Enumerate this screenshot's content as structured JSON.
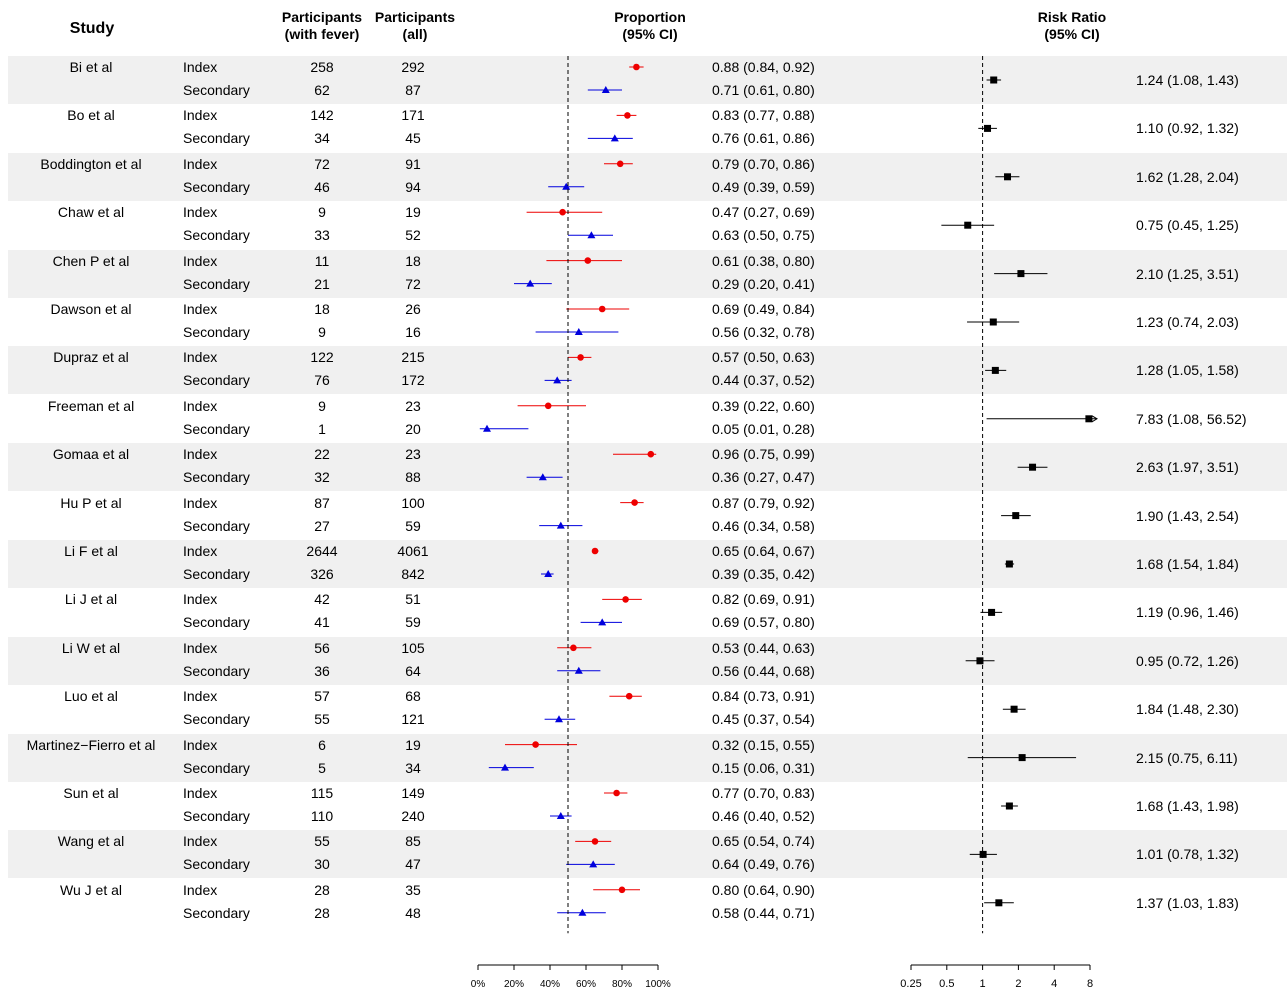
{
  "headers": {
    "study": "Study",
    "participants_fever": [
      "Participants",
      "(with fever)"
    ],
    "participants_all": [
      "Participants",
      "(all)"
    ],
    "proportion": [
      "Proportion",
      "(95% CI)"
    ],
    "risk_ratio": [
      "Risk Ratio",
      "(95% CI)"
    ]
  },
  "colors": {
    "index": "#ee0000",
    "secondary": "#0000dd",
    "rr": "#000000",
    "band": "#f0f0f0"
  },
  "chart_data": [
    {
      "type": "scatter",
      "subtype": "forest-plot",
      "title": "Proportion",
      "subtitle": "(95% CI)",
      "xlim": [
        0,
        1
      ],
      "xticks": [
        0,
        0.2,
        0.4,
        0.6,
        0.8,
        1.0
      ],
      "xtick_labels": [
        "0%",
        "20%",
        "40%",
        "60%",
        "80%",
        "100%"
      ],
      "reference_line": 0.5,
      "series": [
        {
          "name": "Index",
          "marker": "circle",
          "color": "#ee0000"
        },
        {
          "name": "Secondary",
          "marker": "triangle",
          "color": "#0000dd"
        }
      ]
    },
    {
      "type": "scatter",
      "subtype": "forest-plot",
      "title": "Risk Ratio",
      "subtitle": "(95% CI)",
      "scale": "log2",
      "xlim": [
        0.25,
        8
      ],
      "xticks": [
        0.25,
        0.5,
        1,
        2,
        4,
        8
      ],
      "xtick_labels": [
        "0.25",
        "0.5",
        "1",
        "2",
        "4",
        "8"
      ],
      "reference_line": 1
    }
  ],
  "studies": [
    {
      "name": "Bi et al",
      "index": {
        "label": "Index",
        "fever": "258",
        "all": "292",
        "ci": "0.88 (0.84, 0.92)",
        "p": 0.88,
        "lo": 0.84,
        "hi": 0.92
      },
      "secondary": {
        "label": "Secondary",
        "fever": "62",
        "all": "87",
        "ci": "0.71 (0.61, 0.80)",
        "p": 0.71,
        "lo": 0.61,
        "hi": 0.8
      },
      "rr": {
        "text": "1.24 (1.08,  1.43)",
        "est": 1.24,
        "lo": 1.08,
        "hi": 1.43
      }
    },
    {
      "name": "Bo et al",
      "index": {
        "label": "Index",
        "fever": "142",
        "all": "171",
        "ci": "0.83 (0.77, 0.88)",
        "p": 0.83,
        "lo": 0.77,
        "hi": 0.88
      },
      "secondary": {
        "label": "Secondary",
        "fever": "34",
        "all": "45",
        "ci": "0.76 (0.61, 0.86)",
        "p": 0.76,
        "lo": 0.61,
        "hi": 0.86
      },
      "rr": {
        "text": "1.10 (0.92,  1.32)",
        "est": 1.1,
        "lo": 0.92,
        "hi": 1.32
      }
    },
    {
      "name": "Boddington et al",
      "index": {
        "label": "Index",
        "fever": "72",
        "all": "91",
        "ci": "0.79 (0.70, 0.86)",
        "p": 0.79,
        "lo": 0.7,
        "hi": 0.86
      },
      "secondary": {
        "label": "Secondary",
        "fever": "46",
        "all": "94",
        "ci": "0.49 (0.39, 0.59)",
        "p": 0.49,
        "lo": 0.39,
        "hi": 0.59
      },
      "rr": {
        "text": "1.62 (1.28,  2.04)",
        "est": 1.62,
        "lo": 1.28,
        "hi": 2.04
      }
    },
    {
      "name": "Chaw et al",
      "index": {
        "label": "Index",
        "fever": "9",
        "all": "19",
        "ci": "0.47 (0.27, 0.69)",
        "p": 0.47,
        "lo": 0.27,
        "hi": 0.69
      },
      "secondary": {
        "label": "Secondary",
        "fever": "33",
        "all": "52",
        "ci": "0.63 (0.50, 0.75)",
        "p": 0.63,
        "lo": 0.5,
        "hi": 0.75
      },
      "rr": {
        "text": "0.75 (0.45,  1.25)",
        "est": 0.75,
        "lo": 0.45,
        "hi": 1.25
      }
    },
    {
      "name": "Chen P et al",
      "index": {
        "label": "Index",
        "fever": "11",
        "all": "18",
        "ci": "0.61 (0.38, 0.80)",
        "p": 0.61,
        "lo": 0.38,
        "hi": 0.8
      },
      "secondary": {
        "label": "Secondary",
        "fever": "21",
        "all": "72",
        "ci": "0.29 (0.20, 0.41)",
        "p": 0.29,
        "lo": 0.2,
        "hi": 0.41
      },
      "rr": {
        "text": "2.10 (1.25,  3.51)",
        "est": 2.1,
        "lo": 1.25,
        "hi": 3.51
      }
    },
    {
      "name": "Dawson et al",
      "index": {
        "label": "Index",
        "fever": "18",
        "all": "26",
        "ci": "0.69 (0.49, 0.84)",
        "p": 0.69,
        "lo": 0.49,
        "hi": 0.84
      },
      "secondary": {
        "label": "Secondary",
        "fever": "9",
        "all": "16",
        "ci": "0.56 (0.32, 0.78)",
        "p": 0.56,
        "lo": 0.32,
        "hi": 0.78
      },
      "rr": {
        "text": "1.23 (0.74,  2.03)",
        "est": 1.23,
        "lo": 0.74,
        "hi": 2.03
      }
    },
    {
      "name": "Dupraz et al",
      "index": {
        "label": "Index",
        "fever": "122",
        "all": "215",
        "ci": "0.57 (0.50, 0.63)",
        "p": 0.57,
        "lo": 0.5,
        "hi": 0.63
      },
      "secondary": {
        "label": "Secondary",
        "fever": "76",
        "all": "172",
        "ci": "0.44 (0.37, 0.52)",
        "p": 0.44,
        "lo": 0.37,
        "hi": 0.52
      },
      "rr": {
        "text": "1.28 (1.05,  1.58)",
        "est": 1.28,
        "lo": 1.05,
        "hi": 1.58
      }
    },
    {
      "name": "Freeman et al",
      "index": {
        "label": "Index",
        "fever": "9",
        "all": "23",
        "ci": "0.39 (0.22, 0.60)",
        "p": 0.39,
        "lo": 0.22,
        "hi": 0.6
      },
      "secondary": {
        "label": "Secondary",
        "fever": "1",
        "all": "20",
        "ci": "0.05 (0.01, 0.28)",
        "p": 0.05,
        "lo": 0.01,
        "hi": 0.28
      },
      "rr": {
        "text": "7.83 (1.08, 56.52)",
        "est": 7.83,
        "lo": 1.08,
        "hi": 56.52
      }
    },
    {
      "name": "Gomaa et al",
      "index": {
        "label": "Index",
        "fever": "22",
        "all": "23",
        "ci": "0.96 (0.75, 0.99)",
        "p": 0.96,
        "lo": 0.75,
        "hi": 0.99
      },
      "secondary": {
        "label": "Secondary",
        "fever": "32",
        "all": "88",
        "ci": "0.36 (0.27, 0.47)",
        "p": 0.36,
        "lo": 0.27,
        "hi": 0.47
      },
      "rr": {
        "text": "2.63 (1.97,  3.51)",
        "est": 2.63,
        "lo": 1.97,
        "hi": 3.51
      }
    },
    {
      "name": "Hu P et al",
      "index": {
        "label": "Index",
        "fever": "87",
        "all": "100",
        "ci": "0.87 (0.79, 0.92)",
        "p": 0.87,
        "lo": 0.79,
        "hi": 0.92
      },
      "secondary": {
        "label": "Secondary",
        "fever": "27",
        "all": "59",
        "ci": "0.46 (0.34, 0.58)",
        "p": 0.46,
        "lo": 0.34,
        "hi": 0.58
      },
      "rr": {
        "text": "1.90 (1.43,  2.54)",
        "est": 1.9,
        "lo": 1.43,
        "hi": 2.54
      }
    },
    {
      "name": "Li F et al",
      "index": {
        "label": "Index",
        "fever": "2644",
        "all": "4061",
        "ci": "0.65 (0.64, 0.67)",
        "p": 0.65,
        "lo": 0.64,
        "hi": 0.67
      },
      "secondary": {
        "label": "Secondary",
        "fever": "326",
        "all": "842",
        "ci": "0.39 (0.35, 0.42)",
        "p": 0.39,
        "lo": 0.35,
        "hi": 0.42
      },
      "rr": {
        "text": "1.68 (1.54,  1.84)",
        "est": 1.68,
        "lo": 1.54,
        "hi": 1.84
      }
    },
    {
      "name": "Li J et al",
      "index": {
        "label": "Index",
        "fever": "42",
        "all": "51",
        "ci": "0.82 (0.69, 0.91)",
        "p": 0.82,
        "lo": 0.69,
        "hi": 0.91
      },
      "secondary": {
        "label": "Secondary",
        "fever": "41",
        "all": "59",
        "ci": "0.69 (0.57, 0.80)",
        "p": 0.69,
        "lo": 0.57,
        "hi": 0.8
      },
      "rr": {
        "text": "1.19 (0.96,  1.46)",
        "est": 1.19,
        "lo": 0.96,
        "hi": 1.46
      }
    },
    {
      "name": "Li W et al",
      "index": {
        "label": "Index",
        "fever": "56",
        "all": "105",
        "ci": "0.53 (0.44, 0.63)",
        "p": 0.53,
        "lo": 0.44,
        "hi": 0.63
      },
      "secondary": {
        "label": "Secondary",
        "fever": "36",
        "all": "64",
        "ci": "0.56 (0.44, 0.68)",
        "p": 0.56,
        "lo": 0.44,
        "hi": 0.68
      },
      "rr": {
        "text": "0.95 (0.72,  1.26)",
        "est": 0.95,
        "lo": 0.72,
        "hi": 1.26
      }
    },
    {
      "name": "Luo et al",
      "index": {
        "label": "Index",
        "fever": "57",
        "all": "68",
        "ci": "0.84 (0.73, 0.91)",
        "p": 0.84,
        "lo": 0.73,
        "hi": 0.91
      },
      "secondary": {
        "label": "Secondary",
        "fever": "55",
        "all": "121",
        "ci": "0.45 (0.37, 0.54)",
        "p": 0.45,
        "lo": 0.37,
        "hi": 0.54
      },
      "rr": {
        "text": "1.84 (1.48,  2.30)",
        "est": 1.84,
        "lo": 1.48,
        "hi": 2.3
      }
    },
    {
      "name": "Martinez−Fierro et al",
      "index": {
        "label": "Index",
        "fever": "6",
        "all": "19",
        "ci": "0.32 (0.15, 0.55)",
        "p": 0.32,
        "lo": 0.15,
        "hi": 0.55
      },
      "secondary": {
        "label": "Secondary",
        "fever": "5",
        "all": "34",
        "ci": "0.15 (0.06, 0.31)",
        "p": 0.15,
        "lo": 0.06,
        "hi": 0.31
      },
      "rr": {
        "text": "2.15 (0.75,  6.11)",
        "est": 2.15,
        "lo": 0.75,
        "hi": 6.11
      }
    },
    {
      "name": "Sun et al",
      "index": {
        "label": "Index",
        "fever": "115",
        "all": "149",
        "ci": "0.77 (0.70, 0.83)",
        "p": 0.77,
        "lo": 0.7,
        "hi": 0.83
      },
      "secondary": {
        "label": "Secondary",
        "fever": "110",
        "all": "240",
        "ci": "0.46 (0.40, 0.52)",
        "p": 0.46,
        "lo": 0.4,
        "hi": 0.52
      },
      "rr": {
        "text": "1.68 (1.43,  1.98)",
        "est": 1.68,
        "lo": 1.43,
        "hi": 1.98
      }
    },
    {
      "name": "Wang et al",
      "index": {
        "label": "Index",
        "fever": "55",
        "all": "85",
        "ci": "0.65 (0.54, 0.74)",
        "p": 0.65,
        "lo": 0.54,
        "hi": 0.74
      },
      "secondary": {
        "label": "Secondary",
        "fever": "30",
        "all": "47",
        "ci": "0.64 (0.49, 0.76)",
        "p": 0.64,
        "lo": 0.49,
        "hi": 0.76
      },
      "rr": {
        "text": "1.01 (0.78,  1.32)",
        "est": 1.01,
        "lo": 0.78,
        "hi": 1.32
      }
    },
    {
      "name": "Wu J et al",
      "index": {
        "label": "Index",
        "fever": "28",
        "all": "35",
        "ci": "0.80 (0.64, 0.90)",
        "p": 0.8,
        "lo": 0.64,
        "hi": 0.9
      },
      "secondary": {
        "label": "Secondary",
        "fever": "28",
        "all": "48",
        "ci": "0.58 (0.44, 0.71)",
        "p": 0.58,
        "lo": 0.44,
        "hi": 0.71
      },
      "rr": {
        "text": "1.37 (1.03,  1.83)",
        "est": 1.37,
        "lo": 1.03,
        "hi": 1.83
      }
    }
  ]
}
